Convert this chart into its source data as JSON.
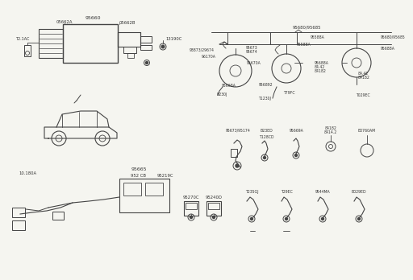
{
  "bg_color": "#f5f5f0",
  "lc": "#444444",
  "tc": "#333333",
  "fs": 4.5,
  "fs_sm": 3.8,
  "lw": 0.7,
  "parts": {
    "p95660": "95660",
    "p05662A": "05662A",
    "p05662B": "05662B",
    "pT21AC": "T2.1AC",
    "p13190C": "13190C",
    "p95665": "95665",
    "p10180A": "10.180A",
    "p952CB": "952 CB",
    "p95219C": "95219C",
    "p95270C": "95270C",
    "p95240D": "95240D",
    "p95680_85": "95680/95685",
    "p93873": "93873/29674",
    "p96170A": "96170A",
    "p95673_74": "95673\n95674",
    "p95670A": "95670A",
    "p95668A": "95668A",
    "pB230J": "B230J",
    "p956892": "956892",
    "pT1230J": "T1230J",
    "p95588A": "95588A",
    "p95688A_r": "95688A",
    "p84_42": "84.42\n84182",
    "pT79FC": "T79FC",
    "p95680_r2": "95680/95685",
    "p95688A_2": "95688A",
    "p84182_r": "84.42\n84182",
    "pT029EC": "T029EC",
    "p95673_174": "95673/95174",
    "pB23ED": "B23ED",
    "pT128CD": "T128CD",
    "p95669A": "95669A",
    "p84182_2": "84182\n8414.2",
    "pB0760AM": "B0760AM",
    "pT235GJ": "T235GJ",
    "pT29EC": "T29EC",
    "p9544MA": "9544MA",
    "pB029ED": "B029ED"
  }
}
